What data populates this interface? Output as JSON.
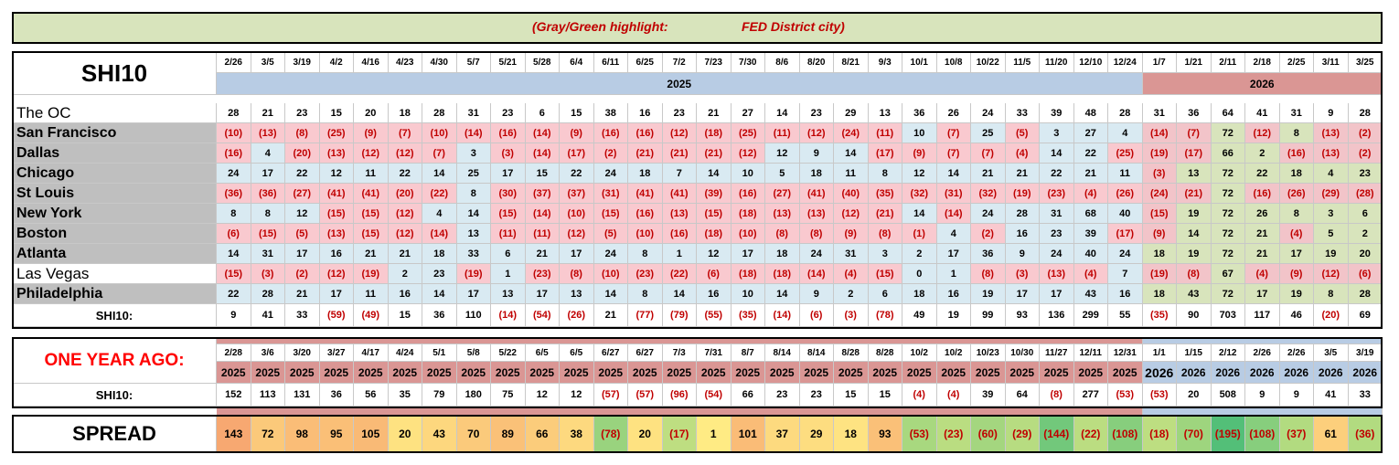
{
  "banner": {
    "label": "(Gray/Green highlight:",
    "value": "FED District city)"
  },
  "header": {
    "title": "SHI10",
    "dates": [
      "2/26",
      "3/5",
      "3/19",
      "4/2",
      "4/16",
      "4/23",
      "4/30",
      "5/7",
      "5/21",
      "5/28",
      "6/4",
      "6/11",
      "6/25",
      "7/2",
      "7/23",
      "7/30",
      "8/6",
      "8/20",
      "8/21",
      "9/3",
      "10/1",
      "10/8",
      "10/22",
      "11/5",
      "11/20",
      "12/10",
      "12/24",
      "1/7",
      "1/21",
      "2/11",
      "2/18",
      "2/25",
      "3/11",
      "3/25"
    ],
    "years": [
      "2025",
      "2026"
    ]
  },
  "rows": [
    {
      "name": "The OC",
      "highlighted": false,
      "values": [
        "28",
        "21",
        "23",
        "15",
        "20",
        "18",
        "28",
        "31",
        "23",
        "6",
        "15",
        "38",
        "16",
        "23",
        "21",
        "27",
        "14",
        "23",
        "29",
        "13",
        "36",
        "26",
        "24",
        "33",
        "39",
        "48",
        "28",
        "31",
        "36",
        "64",
        "41",
        "31",
        "9",
        "28"
      ]
    },
    {
      "name": "San Francisco",
      "highlighted": true,
      "values": [
        "(10)",
        "(13)",
        "(8)",
        "(25)",
        "(9)",
        "(7)",
        "(10)",
        "(14)",
        "(16)",
        "(14)",
        "(9)",
        "(16)",
        "(16)",
        "(12)",
        "(18)",
        "(25)",
        "(11)",
        "(12)",
        "(24)",
        "(11)",
        "10",
        "(7)",
        "25",
        "(5)",
        "3",
        "27",
        "4",
        "(14)",
        "(7)",
        "72",
        "(12)",
        "8",
        "(13)",
        "(2)"
      ]
    },
    {
      "name": "Dallas",
      "highlighted": true,
      "values": [
        "(16)",
        "4",
        "(20)",
        "(13)",
        "(12)",
        "(12)",
        "(7)",
        "3",
        "(3)",
        "(14)",
        "(17)",
        "(2)",
        "(21)",
        "(21)",
        "(21)",
        "(12)",
        "12",
        "9",
        "14",
        "(17)",
        "(9)",
        "(7)",
        "(7)",
        "(4)",
        "14",
        "22",
        "(25)",
        "(19)",
        "(17)",
        "66",
        "2",
        "(16)",
        "(13)",
        "(2)"
      ]
    },
    {
      "name": "Chicago",
      "highlighted": true,
      "values": [
        "24",
        "17",
        "22",
        "12",
        "11",
        "22",
        "14",
        "25",
        "17",
        "15",
        "22",
        "24",
        "18",
        "7",
        "14",
        "10",
        "5",
        "18",
        "11",
        "8",
        "12",
        "14",
        "21",
        "21",
        "22",
        "21",
        "11",
        "(3)",
        "13",
        "72",
        "22",
        "18",
        "4",
        "23"
      ]
    },
    {
      "name": "St Louis",
      "highlighted": true,
      "values": [
        "(36)",
        "(36)",
        "(27)",
        "(41)",
        "(41)",
        "(20)",
        "(22)",
        "8",
        "(30)",
        "(37)",
        "(37)",
        "(31)",
        "(41)",
        "(41)",
        "(39)",
        "(16)",
        "(27)",
        "(41)",
        "(40)",
        "(35)",
        "(32)",
        "(31)",
        "(32)",
        "(19)",
        "(23)",
        "(4)",
        "(26)",
        "(24)",
        "(21)",
        "72",
        "(16)",
        "(26)",
        "(29)",
        "(28)"
      ]
    },
    {
      "name": "New York",
      "highlighted": true,
      "values": [
        "8",
        "8",
        "12",
        "(15)",
        "(15)",
        "(12)",
        "4",
        "14",
        "(15)",
        "(14)",
        "(10)",
        "(15)",
        "(16)",
        "(13)",
        "(15)",
        "(18)",
        "(13)",
        "(13)",
        "(12)",
        "(21)",
        "14",
        "(14)",
        "24",
        "28",
        "31",
        "68",
        "40",
        "(15)",
        "19",
        "72",
        "26",
        "8",
        "3",
        "6"
      ]
    },
    {
      "name": "Boston",
      "highlighted": true,
      "values": [
        "(6)",
        "(15)",
        "(5)",
        "(13)",
        "(15)",
        "(12)",
        "(14)",
        "13",
        "(11)",
        "(11)",
        "(12)",
        "(5)",
        "(10)",
        "(16)",
        "(18)",
        "(10)",
        "(8)",
        "(8)",
        "(9)",
        "(8)",
        "(1)",
        "4",
        "(2)",
        "16",
        "23",
        "39",
        "(17)",
        "(9)",
        "14",
        "72",
        "21",
        "(4)",
        "5",
        "2"
      ]
    },
    {
      "name": "Atlanta",
      "highlighted": true,
      "values": [
        "14",
        "31",
        "17",
        "16",
        "21",
        "21",
        "18",
        "33",
        "6",
        "21",
        "17",
        "24",
        "8",
        "1",
        "12",
        "17",
        "18",
        "24",
        "31",
        "3",
        "2",
        "17",
        "36",
        "9",
        "24",
        "40",
        "24",
        "18",
        "19",
        "72",
        "21",
        "17",
        "19",
        "20"
      ]
    },
    {
      "name": "Las Vegas",
      "highlighted": false,
      "values": [
        "(15)",
        "(3)",
        "(2)",
        "(12)",
        "(19)",
        "2",
        "23",
        "(19)",
        "1",
        "(23)",
        "(8)",
        "(10)",
        "(23)",
        "(22)",
        "(6)",
        "(18)",
        "(18)",
        "(14)",
        "(4)",
        "(15)",
        "0",
        "1",
        "(8)",
        "(3)",
        "(13)",
        "(4)",
        "7",
        "(19)",
        "(8)",
        "67",
        "(4)",
        "(9)",
        "(12)",
        "(6)"
      ]
    },
    {
      "name": "Philadelphia",
      "highlighted": true,
      "values": [
        "22",
        "28",
        "21",
        "17",
        "11",
        "16",
        "14",
        "17",
        "13",
        "17",
        "13",
        "14",
        "8",
        "14",
        "16",
        "10",
        "14",
        "9",
        "2",
        "6",
        "18",
        "16",
        "19",
        "17",
        "17",
        "43",
        "16",
        "18",
        "43",
        "72",
        "17",
        "19",
        "8",
        "28"
      ]
    }
  ],
  "total": {
    "label": "SHI10:",
    "values": [
      "9",
      "41",
      "33",
      "(59)",
      "(49)",
      "15",
      "36",
      "110",
      "(14)",
      "(54)",
      "(26)",
      "21",
      "(77)",
      "(79)",
      "(55)",
      "(35)",
      "(14)",
      "(6)",
      "(3)",
      "(78)",
      "49",
      "19",
      "99",
      "93",
      "136",
      "299",
      "55",
      "(35)",
      "90",
      "703",
      "117",
      "46",
      "(20)",
      "69"
    ]
  },
  "year_ago": {
    "title": "ONE YEAR AGO:",
    "dates": [
      "2/28",
      "3/6",
      "3/20",
      "3/27",
      "4/17",
      "4/24",
      "5/1",
      "5/8",
      "5/22",
      "6/5",
      "6/5",
      "6/27",
      "6/27",
      "7/3",
      "7/31",
      "8/7",
      "8/14",
      "8/14",
      "8/28",
      "8/28",
      "10/2",
      "10/2",
      "10/23",
      "10/30",
      "11/27",
      "12/11",
      "12/31",
      "1/1",
      "1/15",
      "2/12",
      "2/26",
      "2/26",
      "3/5",
      "3/19"
    ],
    "years": [
      "2025",
      "2025",
      "2025",
      "2025",
      "2025",
      "2025",
      "2025",
      "2025",
      "2025",
      "2025",
      "2025",
      "2025",
      "2025",
      "2025",
      "2025",
      "2025",
      "2025",
      "2025",
      "2025",
      "2025",
      "2025",
      "2025",
      "2025",
      "2025",
      "2025",
      "2025",
      "2025",
      "2026",
      "2026",
      "2026",
      "2026",
      "2026",
      "2026",
      "2026"
    ],
    "label": "SHI10:",
    "values": [
      "152",
      "113",
      "131",
      "36",
      "56",
      "35",
      "79",
      "180",
      "75",
      "12",
      "12",
      "(57)",
      "(57)",
      "(96)",
      "(54)",
      "66",
      "23",
      "23",
      "15",
      "15",
      "(4)",
      "(4)",
      "39",
      "64",
      "(8)",
      "277",
      "(53)",
      "(53)",
      "20",
      "508",
      "9",
      "9",
      "41",
      "33"
    ]
  },
  "spread": {
    "label": "SPREAD",
    "values": [
      "143",
      "72",
      "98",
      "95",
      "105",
      "20",
      "43",
      "70",
      "89",
      "66",
      "38",
      "(78)",
      "20",
      "(17)",
      "1",
      "101",
      "37",
      "29",
      "18",
      "93",
      "(53)",
      "(23)",
      "(60)",
      "(29)",
      "(144)",
      "(22)",
      "(108)",
      "(18)",
      "(70)",
      "(195)",
      "(108)",
      "(37)",
      "61",
      "(36)"
    ]
  }
}
